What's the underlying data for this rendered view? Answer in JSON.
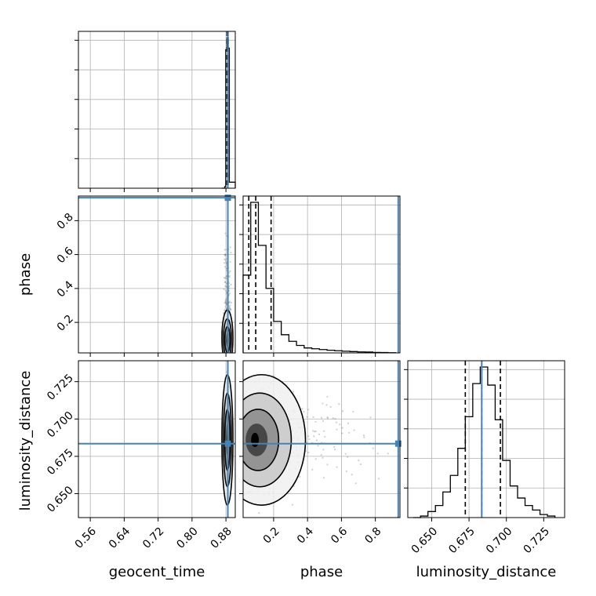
{
  "chart_data": {
    "type": "corner",
    "parameters": [
      "geocent_time",
      "phase",
      "luminosity_distance"
    ],
    "axis_labels": {
      "geocent_time": "geocent_time",
      "phase": "phase",
      "luminosity_distance": "luminosity_distance"
    },
    "injection_color": "#4682b4",
    "colors": {
      "hist": "#000000",
      "grid": "#b0b0b0",
      "points": "#555555"
    },
    "grid": true,
    "ranges": {
      "geocent_time": [
        0.532,
        0.902
      ],
      "phase": [
        0.02,
        0.945
      ],
      "luminosity_distance": [
        0.634,
        0.739
      ]
    },
    "ticks": {
      "geocent_time": [
        {
          "v": 0.56,
          "label": "0.56"
        },
        {
          "v": 0.64,
          "label": "0.64"
        },
        {
          "v": 0.72,
          "label": "0.72"
        },
        {
          "v": 0.8,
          "label": "0.80"
        },
        {
          "v": 0.88,
          "label": "0.88"
        }
      ],
      "phase": [
        {
          "v": 0.2,
          "label": "0.2"
        },
        {
          "v": 0.4,
          "label": "0.4"
        },
        {
          "v": 0.6,
          "label": "0.6"
        },
        {
          "v": 0.8,
          "label": "0.8"
        }
      ],
      "luminosity_distance": [
        {
          "v": 0.65,
          "label": "0.650"
        },
        {
          "v": 0.675,
          "label": "0.675"
        },
        {
          "v": 0.7,
          "label": "0.700"
        },
        {
          "v": 0.725,
          "label": "0.725"
        }
      ]
    },
    "injection": {
      "geocent_time": 0.8845,
      "phase": 0.935,
      "luminosity_distance": 0.6835
    },
    "quantiles": {
      "geocent_time": [
        0.8826,
        0.884,
        0.8851
      ],
      "phase": [
        0.0535,
        0.0945,
        0.185
      ],
      "luminosity_distance": [
        0.6725,
        0.6835,
        0.696
      ]
    },
    "posterior_peak": {
      "geocent_time": 0.8835,
      "phase": 0.09,
      "luminosity_distance": 0.686
    },
    "histograms": {
      "geocent_time": {
        "edges": [
          0.87,
          0.877,
          0.8795,
          0.8825,
          0.8855,
          0.888,
          0.902
        ],
        "counts": [
          0.0,
          0.01,
          0.92,
          1.0,
          0.93,
          0.04
        ]
      },
      "phase": {
        "edges": [
          0.02,
          0.065,
          0.11,
          0.155,
          0.2,
          0.245,
          0.29,
          0.335,
          0.38,
          0.425,
          0.47,
          0.515,
          0.56,
          0.605,
          0.65,
          0.695,
          0.74,
          0.785,
          0.83,
          0.875,
          0.92
        ],
        "counts": [
          0.47,
          0.91,
          0.65,
          0.39,
          0.19,
          0.11,
          0.07,
          0.045,
          0.03,
          0.025,
          0.02,
          0.016,
          0.013,
          0.01,
          0.008,
          0.006,
          0.005,
          0.003,
          0.002,
          0.001
        ]
      },
      "luminosity_distance": {
        "edges": [
          0.6375,
          0.6425,
          0.6475,
          0.6525,
          0.6575,
          0.6625,
          0.6675,
          0.6725,
          0.6775,
          0.6825,
          0.6875,
          0.6925,
          0.6975,
          0.7025,
          0.7075,
          0.7125,
          0.7175,
          0.7225,
          0.7275,
          0.7325
        ],
        "counts": [
          0.0,
          0.01,
          0.04,
          0.08,
          0.17,
          0.28,
          0.46,
          0.67,
          0.89,
          1.0,
          0.88,
          0.65,
          0.38,
          0.21,
          0.13,
          0.08,
          0.05,
          0.02,
          0.01
        ]
      }
    }
  }
}
